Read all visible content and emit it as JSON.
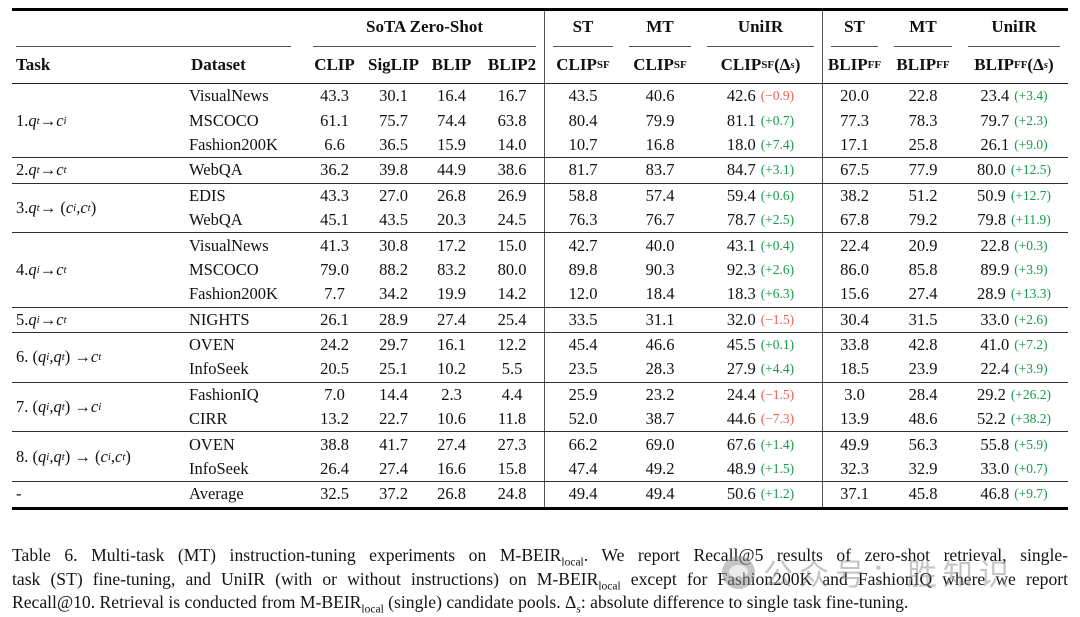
{
  "colors": {
    "delta_pos": "#169a4a",
    "delta_neg": "#ef5e52",
    "rule": "#000000"
  },
  "table": {
    "group_headers": [
      {
        "label": "",
        "span": 2,
        "cmid": true,
        "lead": true
      },
      {
        "label": "SoTA Zero-Shot",
        "span": 4,
        "cmid": true
      },
      {
        "label": "ST",
        "span": 1,
        "cmid": true,
        "bar": true
      },
      {
        "label": "MT",
        "span": 1,
        "cmid": true
      },
      {
        "label": "UniIR",
        "span": 1,
        "cmid": true
      },
      {
        "label": "ST",
        "span": 1,
        "cmid": true,
        "bar": true
      },
      {
        "label": "MT",
        "span": 1,
        "cmid": true
      },
      {
        "label": "UniIR",
        "span": 1,
        "cmid": true
      }
    ],
    "columns": [
      "Task",
      "Dataset",
      "CLIP",
      "SigLIP",
      "BLIP",
      "BLIP2",
      "CLIP_{SF}",
      "CLIP_{SF}",
      "CLIP_{SF} (Δ_{s})",
      "BLIP_{FF}",
      "BLIP_{FF}",
      "BLIP_{FF} (Δ_{s})"
    ],
    "groups": [
      {
        "task": "1. q_{t} → c_{i}",
        "rows": [
          {
            "dataset": "VisualNews",
            "vals": [
              "43.3",
              "30.1",
              "16.4",
              "16.7",
              "43.5",
              "40.6",
              [
                "42.6",
                "−0.9"
              ],
              "20.0",
              "22.8",
              [
                "23.4",
                "+3.4"
              ]
            ]
          },
          {
            "dataset": "MSCOCO",
            "vals": [
              "61.1",
              "75.7",
              "74.4",
              "63.8",
              "80.4",
              "79.9",
              [
                "81.1",
                "+0.7"
              ],
              "77.3",
              "78.3",
              [
                "79.7",
                "+2.3"
              ]
            ]
          },
          {
            "dataset": "Fashion200K",
            "vals": [
              "6.6",
              "36.5",
              "15.9",
              "14.0",
              "10.7",
              "16.8",
              [
                "18.0",
                "+7.4"
              ],
              "17.1",
              "25.8",
              [
                "26.1",
                "+9.0"
              ]
            ]
          }
        ]
      },
      {
        "task": "2. q_{t} → c_{t}",
        "rows": [
          {
            "dataset": "WebQA",
            "vals": [
              "36.2",
              "39.8",
              "44.9",
              "38.6",
              "81.7",
              "83.7",
              [
                "84.7",
                "+3.1"
              ],
              "67.5",
              "77.9",
              [
                "80.0",
                "+12.5"
              ]
            ]
          }
        ]
      },
      {
        "task": "3. q_{t} → (c_{i}, c_{t})",
        "rows": [
          {
            "dataset": "EDIS",
            "vals": [
              "43.3",
              "27.0",
              "26.8",
              "26.9",
              "58.8",
              "57.4",
              [
                "59.4",
                "+0.6"
              ],
              "38.2",
              "51.2",
              [
                "50.9",
                "+12.7"
              ]
            ]
          },
          {
            "dataset": "WebQA",
            "vals": [
              "45.1",
              "43.5",
              "20.3",
              "24.5",
              "76.3",
              "76.7",
              [
                "78.7",
                "+2.5"
              ],
              "67.8",
              "79.2",
              [
                "79.8",
                "+11.9"
              ]
            ]
          }
        ]
      },
      {
        "task": "4. q_{i} → c_{t}",
        "rows": [
          {
            "dataset": "VisualNews",
            "vals": [
              "41.3",
              "30.8",
              "17.2",
              "15.0",
              "42.7",
              "40.0",
              [
                "43.1",
                "+0.4"
              ],
              "22.4",
              "20.9",
              [
                "22.8",
                "+0.3"
              ]
            ]
          },
          {
            "dataset": "MSCOCO",
            "vals": [
              "79.0",
              "88.2",
              "83.2",
              "80.0",
              "89.8",
              "90.3",
              [
                "92.3",
                "+2.6"
              ],
              "86.0",
              "85.8",
              [
                "89.9",
                "+3.9"
              ]
            ]
          },
          {
            "dataset": "Fashion200K",
            "vals": [
              "7.7",
              "34.2",
              "19.9",
              "14.2",
              "12.0",
              "18.4",
              [
                "18.3",
                "+6.3"
              ],
              "15.6",
              "27.4",
              [
                "28.9",
                "+13.3"
              ]
            ]
          }
        ]
      },
      {
        "task": "5. q_{i} → c_{t}",
        "rows": [
          {
            "dataset": "NIGHTS",
            "vals": [
              "26.1",
              "28.9",
              "27.4",
              "25.4",
              "33.5",
              "31.1",
              [
                "32.0",
                "−1.5"
              ],
              "30.4",
              "31.5",
              [
                "33.0",
                "+2.6"
              ]
            ]
          }
        ]
      },
      {
        "task": "6. (q_{i}, q_{t}) → c_{t}",
        "rows": [
          {
            "dataset": "OVEN",
            "vals": [
              "24.2",
              "29.7",
              "16.1",
              "12.2",
              "45.4",
              "46.6",
              [
                "45.5",
                "+0.1"
              ],
              "33.8",
              "42.8",
              [
                "41.0",
                "+7.2"
              ]
            ]
          },
          {
            "dataset": "InfoSeek",
            "vals": [
              "20.5",
              "25.1",
              "10.2",
              "5.5",
              "23.5",
              "28.3",
              [
                "27.9",
                "+4.4"
              ],
              "18.5",
              "23.9",
              [
                "22.4",
                "+3.9"
              ]
            ]
          }
        ]
      },
      {
        "task": "7. (q_{i}, q_{t}) → c_{i}",
        "rows": [
          {
            "dataset": "FashionIQ",
            "vals": [
              "7.0",
              "14.4",
              "2.3",
              "4.4",
              "25.9",
              "23.2",
              [
                "24.4",
                "−1.5"
              ],
              "3.0",
              "28.4",
              [
                "29.2",
                "+26.2"
              ]
            ]
          },
          {
            "dataset": "CIRR",
            "vals": [
              "13.2",
              "22.7",
              "10.6",
              "11.8",
              "52.0",
              "38.7",
              [
                "44.6",
                "−7.3"
              ],
              "13.9",
              "48.6",
              [
                "52.2",
                "+38.2"
              ]
            ]
          }
        ]
      },
      {
        "task": "8. (q_{i}, q_{t}) → (c_{i}, c_{t})",
        "rows": [
          {
            "dataset": "OVEN",
            "vals": [
              "38.8",
              "41.7",
              "27.4",
              "27.3",
              "66.2",
              "69.0",
              [
                "67.6",
                "+1.4"
              ],
              "49.9",
              "56.3",
              [
                "55.8",
                "+5.9"
              ]
            ]
          },
          {
            "dataset": "InfoSeek",
            "vals": [
              "26.4",
              "27.4",
              "16.6",
              "15.8",
              "47.4",
              "49.2",
              [
                "48.9",
                "+1.5"
              ],
              "32.3",
              "32.9",
              [
                "33.0",
                "+0.7"
              ]
            ]
          }
        ]
      },
      {
        "task": "-",
        "rows": [
          {
            "dataset": "Average",
            "vals": [
              "32.5",
              "37.2",
              "26.8",
              "24.8",
              "49.4",
              "49.4",
              [
                "50.6",
                "+1.2"
              ],
              "37.1",
              "45.8",
              [
                "46.8",
                "+9.7"
              ]
            ]
          }
        ]
      }
    ]
  },
  "caption": {
    "lines": [
      "Table 6.  Multi-task (MT) instruction-tuning experiments on M-BEIR_{local}.  We report Recall@5 results of zero-shot retrieval, single-",
      "task (ST) fine-tuning, and UniIR (with or without instructions) on M-BEIR_{local} except for Fashion200K and FashionIQ where we report",
      "Recall@10. Retrieval is conducted from M-BEIR_{local} (single) candidate pools. Δ_{s}: absolute difference to single task fine-tuning."
    ]
  },
  "watermark": {
    "text": "公众号：胜知识"
  }
}
